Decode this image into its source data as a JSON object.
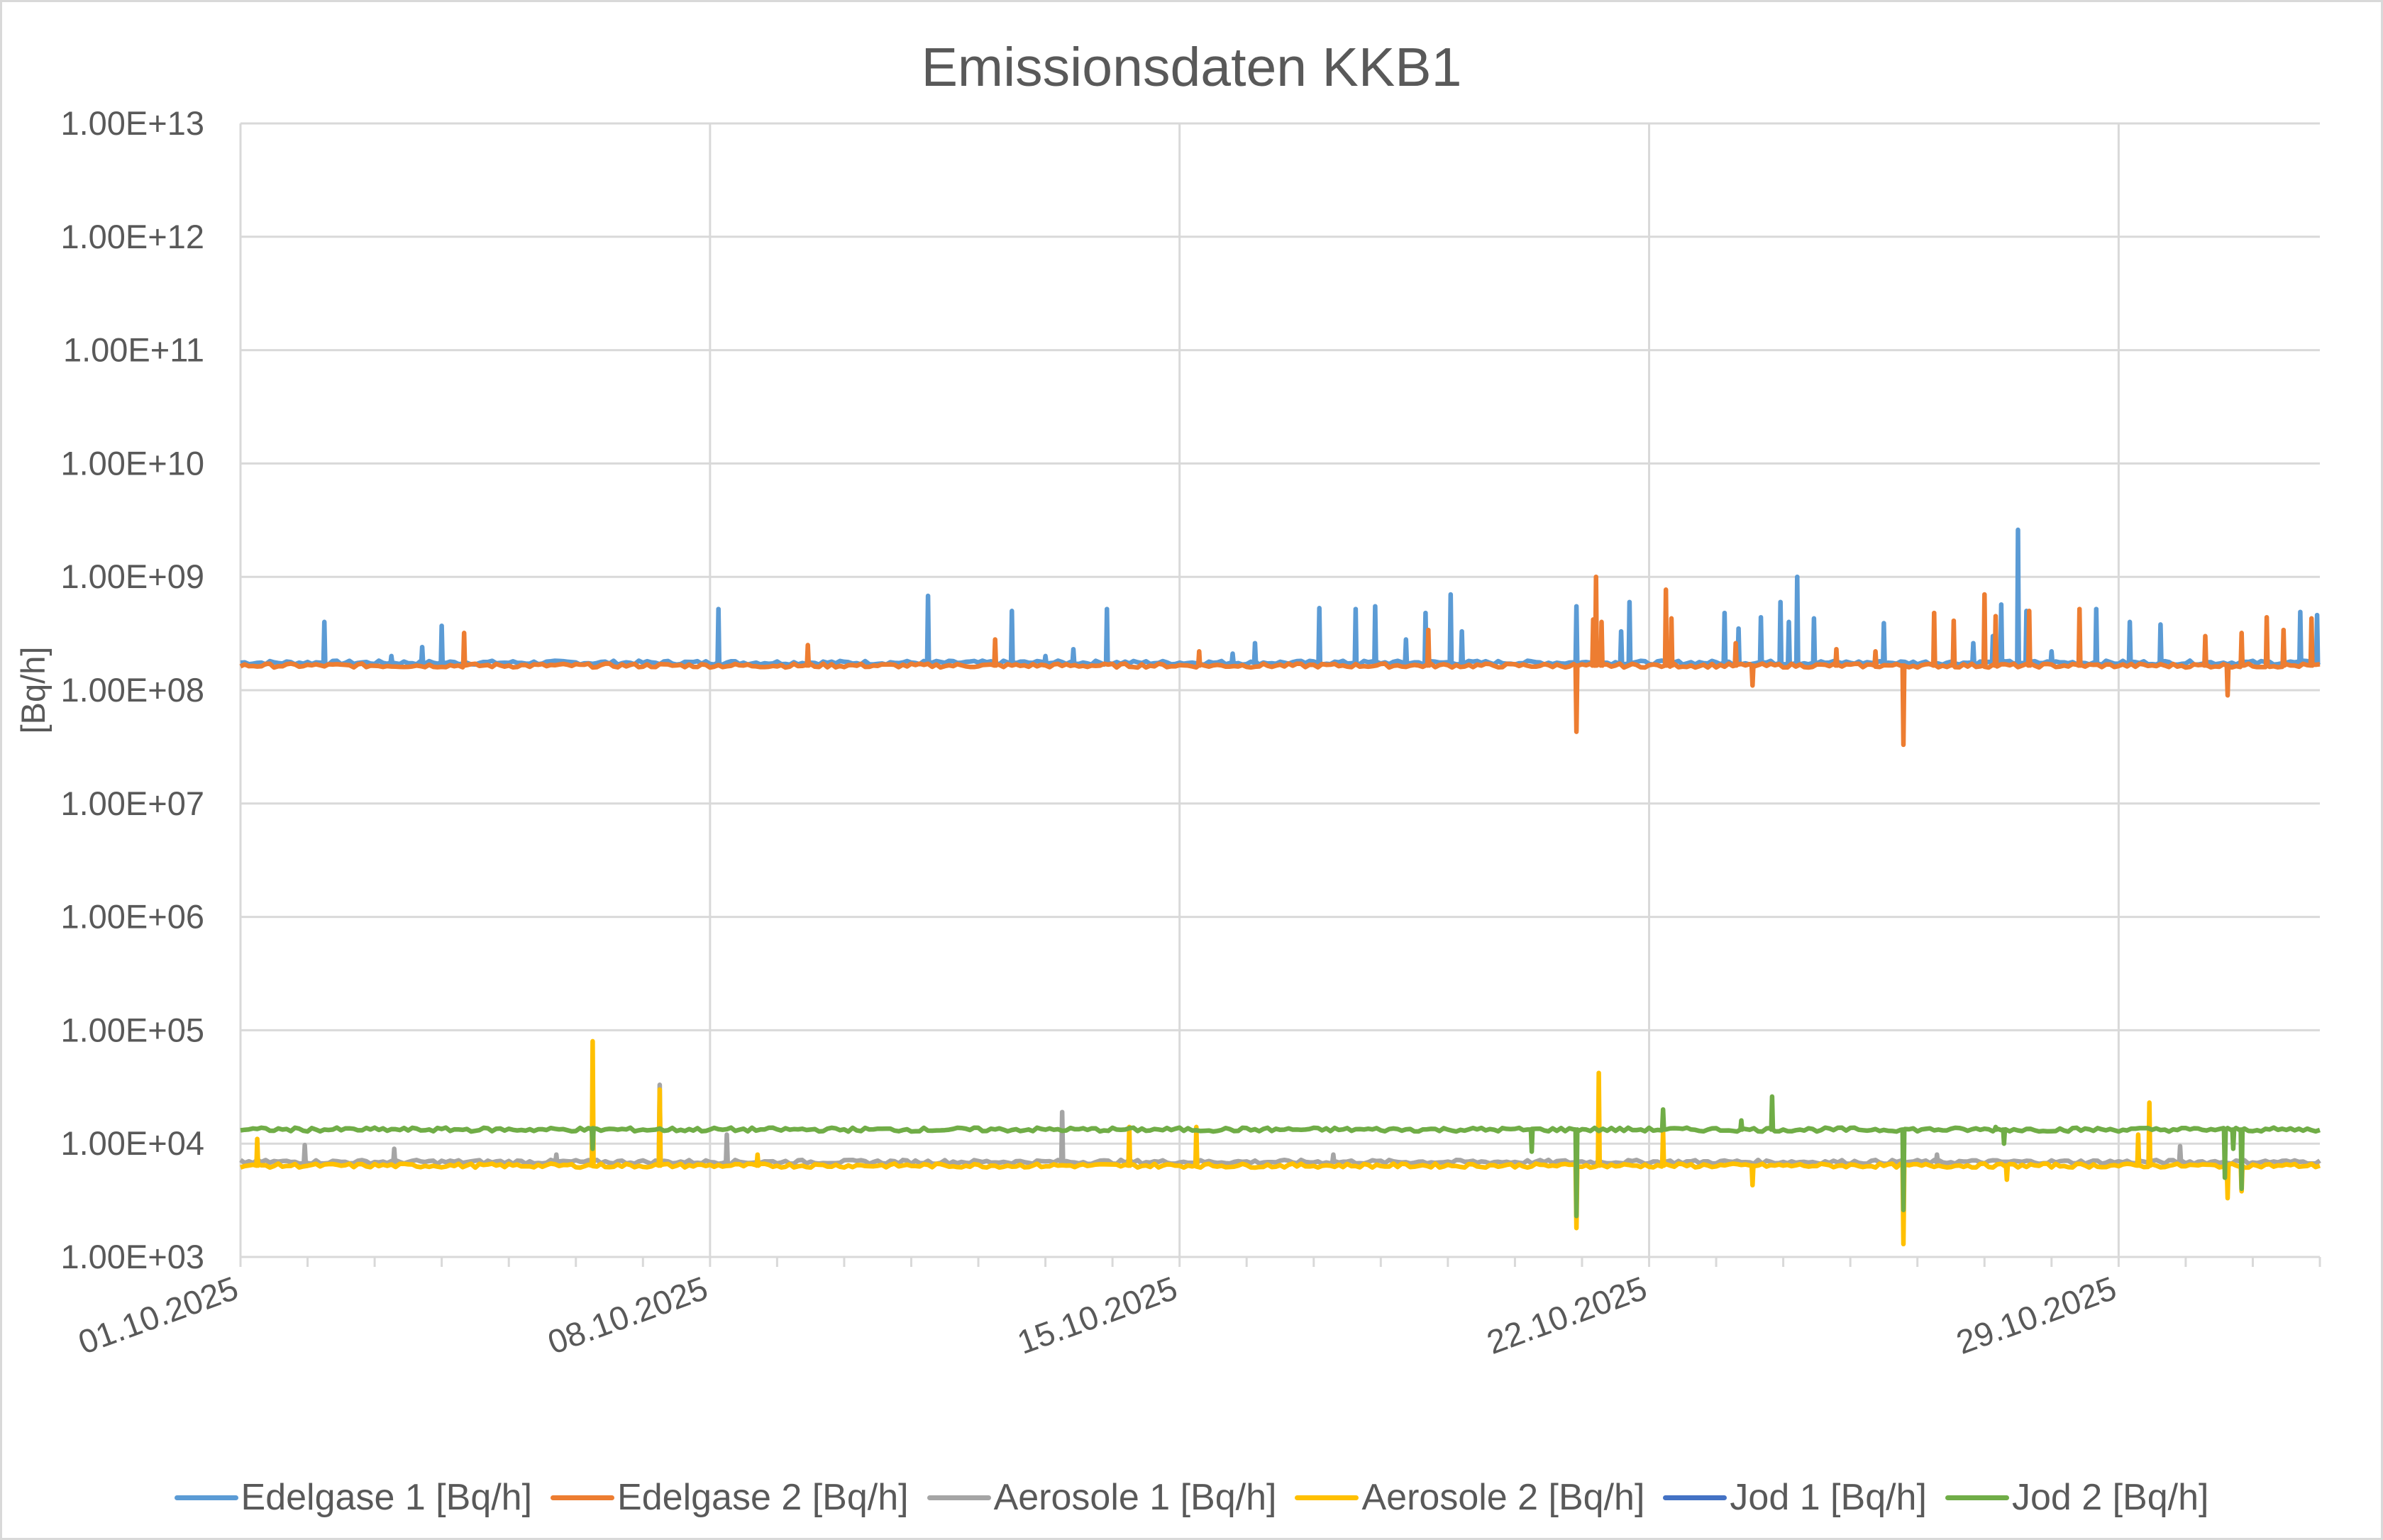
{
  "chart_data": {
    "type": "line",
    "title": "Emissionsdaten KKB1",
    "xlabel": "",
    "ylabel": "[Bq/h]",
    "yscale": "log",
    "ylim": [
      1000.0,
      10000000000000.0
    ],
    "xlim": [
      "01.10.2025 00:00",
      "01.11.2025 00:00"
    ],
    "y_tick_labels": [
      "1.00E+13",
      "1.00E+12",
      "1.00E+11",
      "1.00E+10",
      "1.00E+09",
      "1.00E+08",
      "1.00E+07",
      "1.00E+06",
      "1.00E+05",
      "1.00E+04",
      "1.00E+03"
    ],
    "x_tick_labels": [
      "01.10.2025",
      "08.10.2025",
      "15.10.2025",
      "22.10.2025",
      "29.10.2025"
    ],
    "grid": true,
    "legend_position": "bottom",
    "series": [
      {
        "name": "Edelgase 1 [Bq/h]",
        "color": "#5B9BD5",
        "baseline": 175000000.0,
        "points": [
          [
            "02.10.2025 06:00",
            400000000.0
          ],
          [
            "03.10.2025 06:00",
            200000000.0
          ],
          [
            "03.10.2025 17:00",
            240000000.0
          ],
          [
            "04.10.2025 00:00",
            370000000.0
          ],
          [
            "08.10.2025 03:00",
            520000000.0
          ],
          [
            "11.10.2025 06:00",
            680000000.0
          ],
          [
            "12.10.2025 12:00",
            500000000.0
          ],
          [
            "13.10.2025 00:00",
            200000000.0
          ],
          [
            "13.10.2025 10:00",
            230000000.0
          ],
          [
            "13.10.2025 22:00",
            520000000.0
          ],
          [
            "15.10.2025 19:00",
            210000000.0
          ],
          [
            "16.10.2025 03:00",
            260000000.0
          ],
          [
            "17.10.2025 02:00",
            530000000.0
          ],
          [
            "17.10.2025 15:00",
            520000000.0
          ],
          [
            "17.10.2025 22:00",
            550000000.0
          ],
          [
            "18.10.2025 09:00",
            280000000.0
          ],
          [
            "18.10.2025 16:00",
            480000000.0
          ],
          [
            "19.10.2025 01:00",
            700000000.0
          ],
          [
            "19.10.2025 05:00",
            330000000.0
          ],
          [
            "20.10.2025 22:00",
            550000000.0
          ],
          [
            "21.10.2025 14:00",
            330000000.0
          ],
          [
            "21.10.2025 17:00",
            600000000.0
          ],
          [
            "23.10.2025 03:00",
            480000000.0
          ],
          [
            "23.10.2025 08:00",
            350000000.0
          ],
          [
            "23.10.2025 16:00",
            440000000.0
          ],
          [
            "23.10.2025 23:00",
            600000000.0
          ],
          [
            "24.10.2025 02:00",
            400000000.0
          ],
          [
            "24.10.2025 05:00",
            1000000000.0
          ],
          [
            "24.10.2025 11:00",
            430000000.0
          ],
          [
            "25.10.2025 12:00",
            390000000.0
          ],
          [
            "26.10.2025 20:00",
            260000000.0
          ],
          [
            "27.10.2025 03:00",
            300000000.0
          ],
          [
            "27.10.2025 06:00",
            570000000.0
          ],
          [
            "27.10.2025 12:00",
            2600000000.0
          ],
          [
            "27.10.2025 15:00",
            500000000.0
          ],
          [
            "28.10.2025 00:00",
            220000000.0
          ],
          [
            "28.10.2025 16:00",
            520000000.0
          ],
          [
            "29.10.2025 04:00",
            400000000.0
          ],
          [
            "29.10.2025 15:00",
            380000000.0
          ],
          [
            "31.10.2025 17:00",
            490000000.0
          ],
          [
            "31.10.2025 23:00",
            460000000.0
          ]
        ]
      },
      {
        "name": "Edelgase 2 [Bq/h]",
        "color": "#ED7D31",
        "baseline": 165000000.0,
        "points": [
          [
            "04.10.2025 08:00",
            320000000.0
          ],
          [
            "09.10.2025 11:00",
            250000000.0
          ],
          [
            "12.10.2025 06:00",
            280000000.0
          ],
          [
            "15.10.2025 07:00",
            220000000.0
          ],
          [
            "18.10.2025 17:00",
            340000000.0
          ],
          [
            "20.10.2025 22:00",
            43000000.0
          ],
          [
            "21.10.2025 04:00",
            420000000.0
          ],
          [
            "21.10.2025 05:00",
            1000000000.0
          ],
          [
            "21.10.2025 07:00",
            400000000.0
          ],
          [
            "22.10.2025 06:00",
            770000000.0
          ],
          [
            "22.10.2025 08:00",
            430000000.0
          ],
          [
            "23.10.2025 07:00",
            260000000.0
          ],
          [
            "23.10.2025 13:00",
            110000000.0
          ],
          [
            "24.10.2025 19:00",
            230000000.0
          ],
          [
            "25.10.2025 09:00",
            220000000.0
          ],
          [
            "25.10.2025 19:00",
            33000000.0
          ],
          [
            "26.10.2025 06:00",
            480000000.0
          ],
          [
            "26.10.2025 13:00",
            410000000.0
          ],
          [
            "27.10.2025 00:00",
            700000000.0
          ],
          [
            "27.10.2025 04:00",
            450000000.0
          ],
          [
            "27.10.2025 16:00",
            500000000.0
          ],
          [
            "28.10.2025 10:00",
            520000000.0
          ],
          [
            "30.10.2025 07:00",
            300000000.0
          ],
          [
            "30.10.2025 15:00",
            90000000.0
          ],
          [
            "30.10.2025 20:00",
            320000000.0
          ],
          [
            "31.10.2025 05:00",
            440000000.0
          ],
          [
            "31.10.2025 11:00",
            340000000.0
          ],
          [
            "31.10.2025 21:00",
            430000000.0
          ]
        ]
      },
      {
        "name": "Aerosole 1 [Bq/h]",
        "color": "#A5A5A5",
        "baseline": 6900.0,
        "points": [
          [
            "01.10.2025 23:00",
            9700.0
          ],
          [
            "03.10.2025 07:00",
            9000.0
          ],
          [
            "05.10.2025 17:00",
            8000.0
          ],
          [
            "07.10.2025 06:00",
            33000.0
          ],
          [
            "08.10.2025 06:00",
            12000.0
          ],
          [
            "13.10.2025 06:00",
            19000.0
          ],
          [
            "17.10.2025 07:00",
            8000.0
          ],
          [
            "26.10.2025 07:00",
            8000.0
          ],
          [
            "29.10.2025 22:00",
            9500.0
          ]
        ]
      },
      {
        "name": "Aerosole 2 [Bq/h]",
        "color": "#FFC000",
        "baseline": 6400.0,
        "points": [
          [
            "01.10.2025 06:00",
            11000.0
          ],
          [
            "06.10.2025 06:00",
            80000.0
          ],
          [
            "07.10.2025 06:00",
            30000.0
          ],
          [
            "08.10.2025 17:00",
            8000.0
          ],
          [
            "14.10.2025 06:00",
            14000.0
          ],
          [
            "15.10.2025 06:00",
            14000.0
          ],
          [
            "20.10.2025 22:00",
            1800.0
          ],
          [
            "21.10.2025 06:00",
            42000.0
          ],
          [
            "22.10.2025 05:00",
            13000.0
          ],
          [
            "23.10.2025 13:00",
            4300.0
          ],
          [
            "25.10.2025 19:00",
            1300.0
          ],
          [
            "27.10.2025 08:00",
            4800.0
          ],
          [
            "29.10.2025 07:00",
            12000.0
          ],
          [
            "29.10.2025 11:00",
            23000.0
          ],
          [
            "30.10.2025 15:00",
            3300.0
          ],
          [
            "30.10.2025 20:00",
            3800.0
          ]
        ]
      },
      {
        "name": "Jod 1 [Bq/h]",
        "color": "#4472C4",
        "points": []
      },
      {
        "name": "Jod 2 [Bq/h]",
        "color": "#70AD47",
        "baseline": 13300.0,
        "points": [
          [
            "06.10.2025 06:00",
            9000.0
          ],
          [
            "20.10.2025 06:00",
            8500.0
          ],
          [
            "20.10.2025 22:00",
            2300.0
          ],
          [
            "22.10.2025 05:00",
            20000.0
          ],
          [
            "23.10.2025 09:00",
            16000.0
          ],
          [
            "23.10.2025 20:00",
            26000.0
          ],
          [
            "25.10.2025 19:00",
            2600.0
          ],
          [
            "27.10.2025 04:00",
            14000.0
          ],
          [
            "27.10.2025 07:00",
            10000.0
          ],
          [
            "30.10.2025 14:00",
            5000.0
          ],
          [
            "30.10.2025 17:00",
            9000.0
          ],
          [
            "30.10.2025 20:00",
            4000.0
          ]
        ]
      }
    ]
  }
}
